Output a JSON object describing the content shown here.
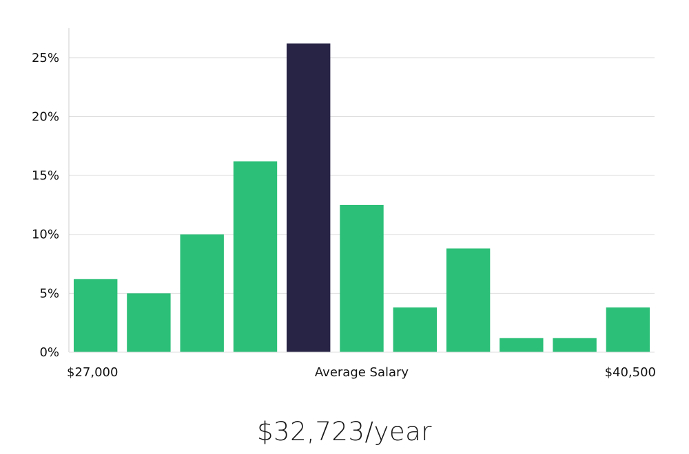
{
  "chart_data": {
    "type": "bar",
    "values": [
      6.2,
      5.0,
      10.0,
      16.2,
      26.2,
      12.5,
      3.8,
      8.8,
      1.2,
      1.2,
      3.8
    ],
    "highlight_index": 4,
    "ylim": [
      0,
      27.5
    ],
    "yticks": [
      "0%",
      "5%",
      "10%",
      "15%",
      "20%",
      "25%"
    ],
    "ytick_values": [
      0,
      5,
      10,
      15,
      20,
      25
    ],
    "grid": true,
    "x_labels": {
      "left": "$27,000",
      "center": "Average Salary",
      "right": "$40,500"
    },
    "colors": {
      "bar": "#2bbf77",
      "highlight": "#272446",
      "grid": "#dddddd",
      "axis": "#cccccc"
    }
  },
  "summary": {
    "text": "$32,723/year"
  }
}
